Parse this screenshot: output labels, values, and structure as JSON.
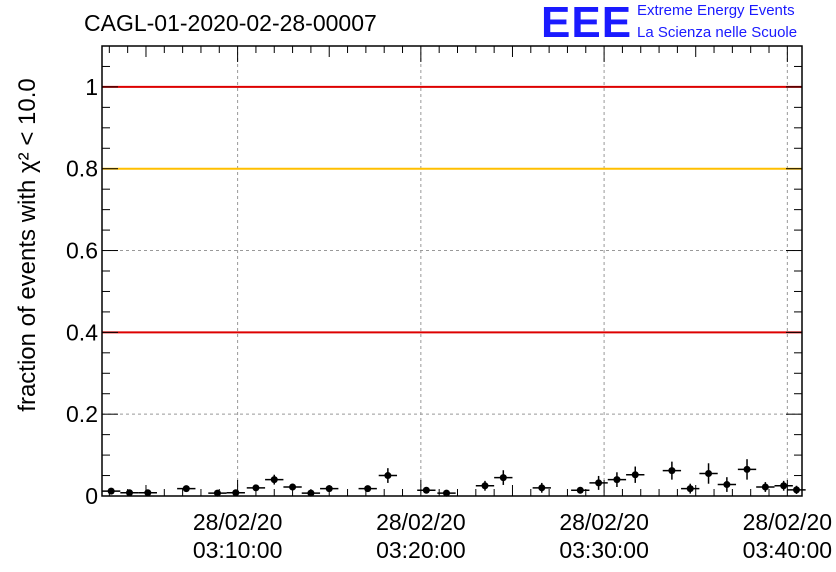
{
  "title": "CAGL-01-2020-02-28-00007",
  "logo": {
    "mark": "EEE",
    "line1": "Extreme Energy Events",
    "line2": "La Scienza nelle Scuole"
  },
  "colors": {
    "red": "#dd0000",
    "orange": "#ffbf00",
    "logo": "#1a1aff",
    "marker": "#000000",
    "grid": "#999999"
  },
  "chart_data": {
    "type": "scatter",
    "title": "CAGL-01-2020-02-28-00007",
    "ylabel": "fraction of events with χ² < 10.0",
    "xlabel": "",
    "ylim": [
      0,
      1.1
    ],
    "y_ticks": [
      0,
      0.2,
      0.4,
      0.6,
      0.8,
      1
    ],
    "y_tick_labels": [
      "0",
      "0.2",
      "0.4",
      "0.6",
      "0.8",
      "1"
    ],
    "x_ticks": [
      {
        "min": 10,
        "date": "28/02/20",
        "time": "03:10:00"
      },
      {
        "min": 20,
        "date": "28/02/20",
        "time": "03:20:00"
      },
      {
        "min": 30,
        "date": "28/02/20",
        "time": "03:30:00"
      },
      {
        "min": 40,
        "date": "28/02/20",
        "time": "03:40:00"
      }
    ],
    "xlim_minutes_after_03h": [
      2.6,
      40.8
    ],
    "reference_lines": [
      {
        "y": 1.0,
        "color": "red"
      },
      {
        "y": 0.8,
        "color": "orange"
      },
      {
        "y": 0.4,
        "color": "red"
      }
    ],
    "points": [
      {
        "t": 3.1,
        "y": 0.012,
        "err": 0.005
      },
      {
        "t": 4.1,
        "y": 0.008,
        "err": 0.004
      },
      {
        "t": 5.1,
        "y": 0.008,
        "err": 0.004
      },
      {
        "t": 7.2,
        "y": 0.018,
        "err": 0.006
      },
      {
        "t": 8.9,
        "y": 0.007,
        "err": 0.004
      },
      {
        "t": 9.9,
        "y": 0.008,
        "err": 0.004
      },
      {
        "t": 11.0,
        "y": 0.02,
        "err": 0.006
      },
      {
        "t": 12.0,
        "y": 0.04,
        "err": 0.012
      },
      {
        "t": 13.0,
        "y": 0.022,
        "err": 0.008
      },
      {
        "t": 14.0,
        "y": 0.007,
        "err": 0.004
      },
      {
        "t": 15.0,
        "y": 0.018,
        "err": 0.006
      },
      {
        "t": 17.1,
        "y": 0.018,
        "err": 0.007
      },
      {
        "t": 18.2,
        "y": 0.05,
        "err": 0.018
      },
      {
        "t": 20.3,
        "y": 0.014,
        "err": 0.006
      },
      {
        "t": 21.4,
        "y": 0.007,
        "err": 0.004
      },
      {
        "t": 23.5,
        "y": 0.025,
        "err": 0.012
      },
      {
        "t": 24.5,
        "y": 0.045,
        "err": 0.018
      },
      {
        "t": 26.6,
        "y": 0.02,
        "err": 0.012
      },
      {
        "t": 28.7,
        "y": 0.014,
        "err": 0.008
      },
      {
        "t": 29.7,
        "y": 0.032,
        "err": 0.017
      },
      {
        "t": 30.7,
        "y": 0.04,
        "err": 0.018
      },
      {
        "t": 31.7,
        "y": 0.052,
        "err": 0.02
      },
      {
        "t": 33.7,
        "y": 0.062,
        "err": 0.022
      },
      {
        "t": 34.7,
        "y": 0.018,
        "err": 0.012
      },
      {
        "t": 35.7,
        "y": 0.055,
        "err": 0.025
      },
      {
        "t": 36.7,
        "y": 0.028,
        "err": 0.018
      },
      {
        "t": 37.8,
        "y": 0.065,
        "err": 0.025
      },
      {
        "t": 38.8,
        "y": 0.022,
        "err": 0.012
      },
      {
        "t": 39.8,
        "y": 0.025,
        "err": 0.012
      },
      {
        "t": 40.5,
        "y": 0.015,
        "err": 0.01
      }
    ]
  }
}
